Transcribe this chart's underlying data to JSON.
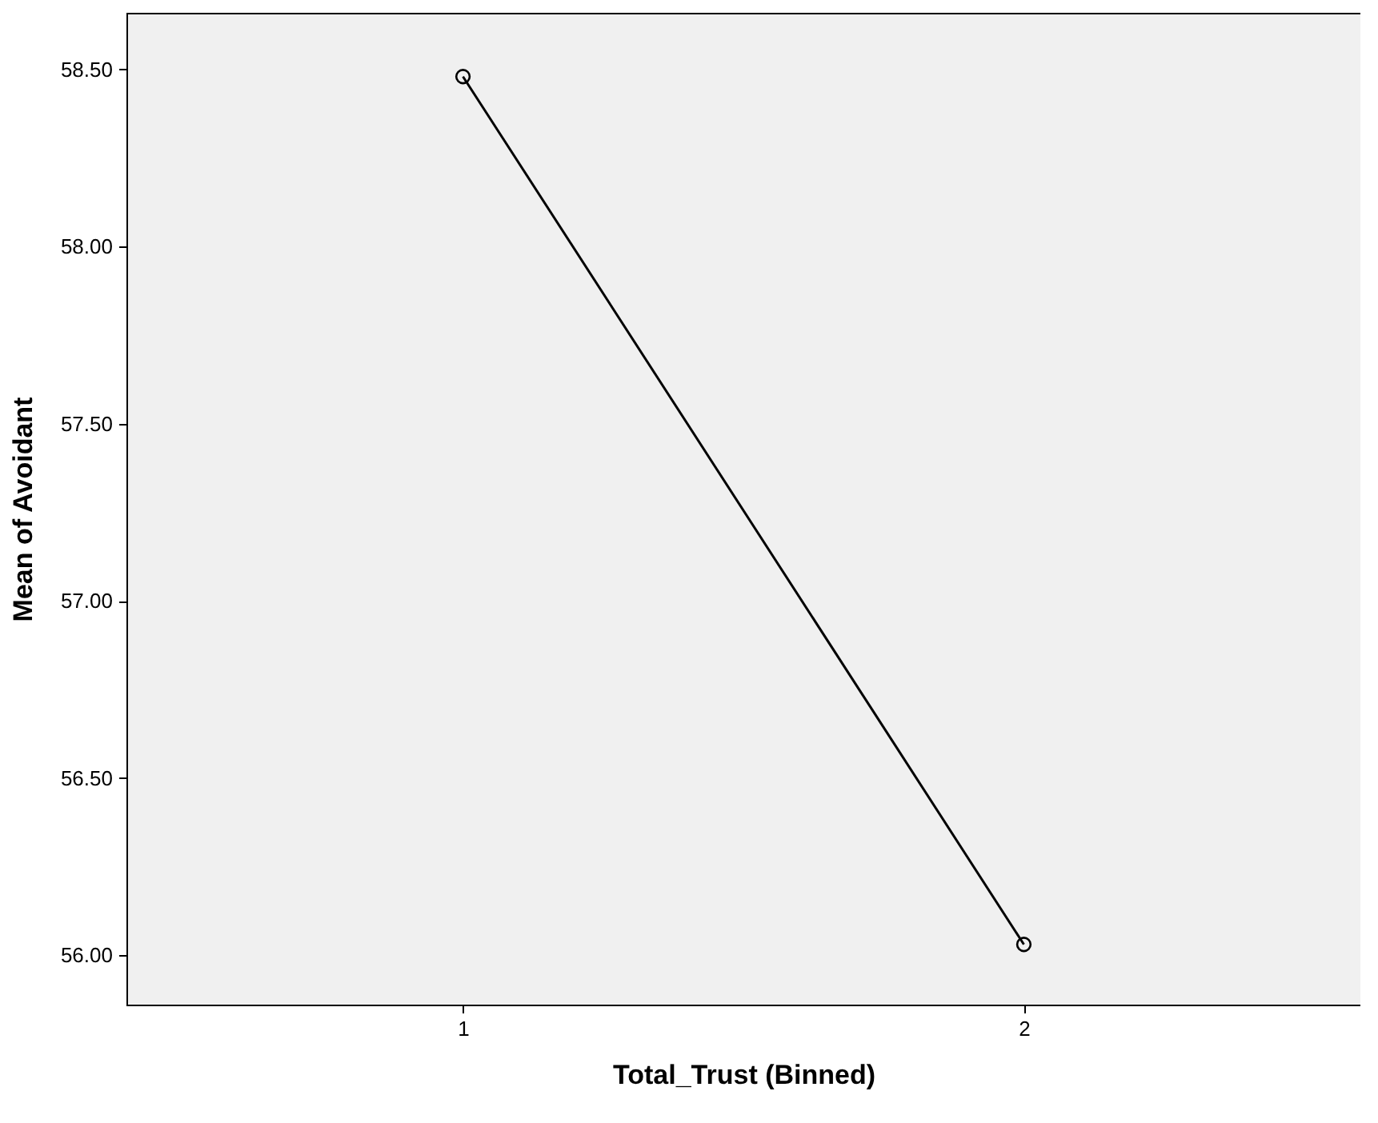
{
  "chart_data": {
    "type": "line",
    "xlabel": "Total_Trust (Binned)",
    "ylabel": "Mean of Avoidant",
    "x": [
      1,
      2
    ],
    "series": [
      {
        "color": "#000000",
        "values": [
          58.48,
          56.03
        ]
      }
    ],
    "xlim": [
      0.4,
      2.6
    ],
    "xticks": [
      1,
      2
    ],
    "ylim": [
      55.86,
      58.66
    ],
    "yticks": [
      {
        "value": 56,
        "label": "56.00"
      },
      {
        "value": 56.5,
        "label": "56.50"
      },
      {
        "value": 57,
        "label": "57.00"
      },
      {
        "value": 57.5,
        "label": "57.50"
      },
      {
        "value": 58,
        "label": "58.00"
      },
      {
        "value": 58.5,
        "label": "58.50"
      }
    ],
    "marker": "circle",
    "line_style": "solid",
    "grid": false
  }
}
